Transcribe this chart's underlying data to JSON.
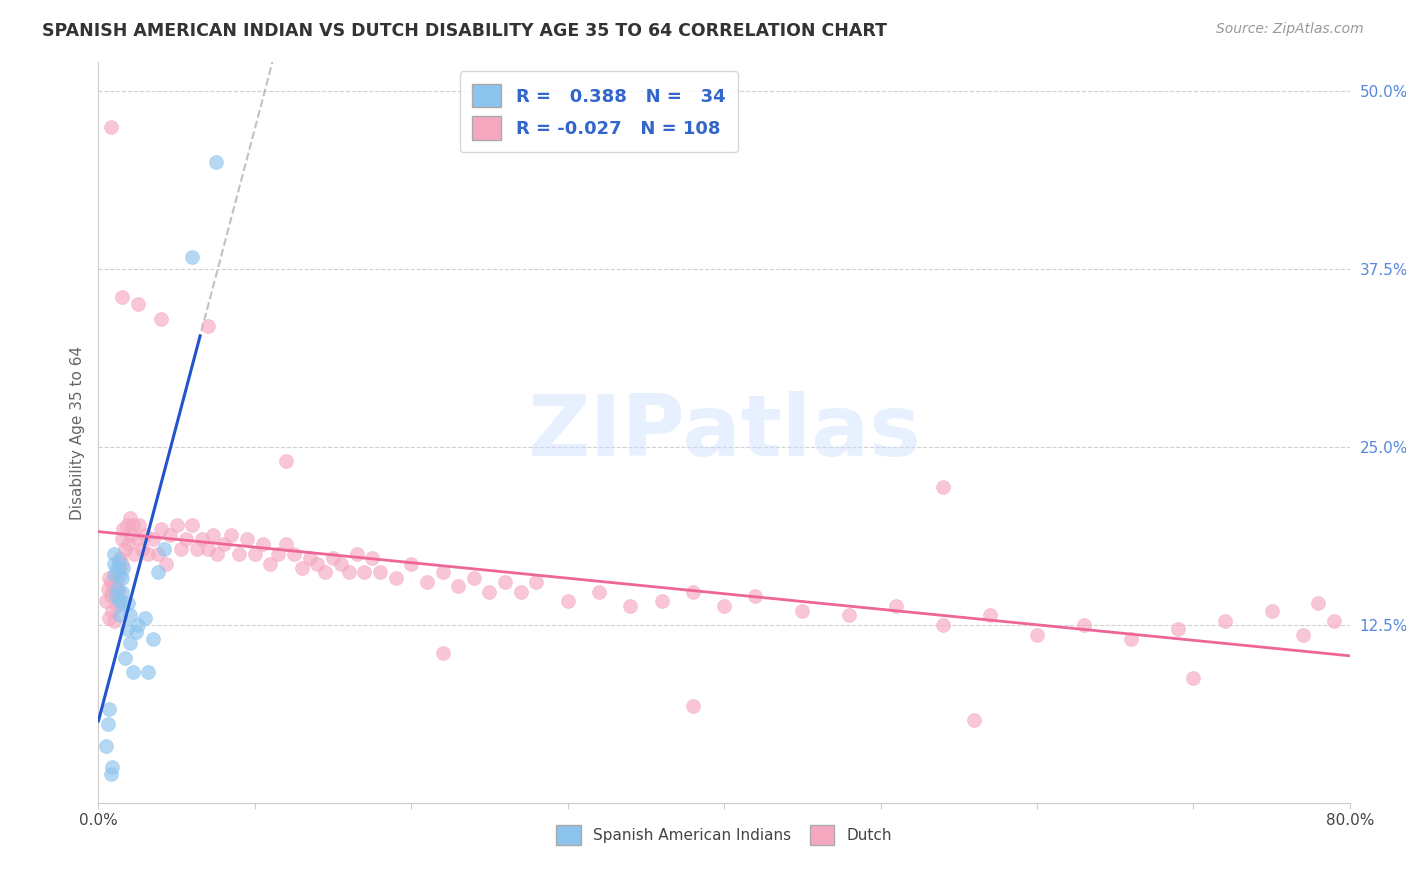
{
  "title": "SPANISH AMERICAN INDIAN VS DUTCH DISABILITY AGE 35 TO 64 CORRELATION CHART",
  "source": "Source: ZipAtlas.com",
  "ylabel": "Disability Age 35 to 64",
  "xlim": [
    0.0,
    0.8
  ],
  "ylim": [
    0.0,
    0.52
  ],
  "xtick_positions": [
    0.0,
    0.1,
    0.2,
    0.3,
    0.4,
    0.5,
    0.6,
    0.7,
    0.8
  ],
  "xtick_labels_visible": {
    "0.0": "0.0%",
    "0.80": "80.0%"
  },
  "ytick_positions": [
    0.125,
    0.25,
    0.375,
    0.5
  ],
  "ytick_labels": [
    "12.5%",
    "25.0%",
    "37.5%",
    "50.0%"
  ],
  "r_blue": 0.388,
  "n_blue": 34,
  "r_pink": -0.027,
  "n_pink": 108,
  "blue_color": "#8CC4EE",
  "pink_color": "#F5A8C0",
  "blue_line_color": "#2255CC",
  "pink_line_color": "#EE6699",
  "gray_dash_color": "#BBBBBB",
  "watermark_text": "ZIPatlas",
  "blue_x": [
    0.005,
    0.006,
    0.007,
    0.008,
    0.009,
    0.01,
    0.01,
    0.01,
    0.011,
    0.012,
    0.012,
    0.013,
    0.013,
    0.014,
    0.014,
    0.015,
    0.015,
    0.016,
    0.016,
    0.017,
    0.018,
    0.019,
    0.02,
    0.02,
    0.022,
    0.024,
    0.025,
    0.03,
    0.032,
    0.035,
    0.038,
    0.042,
    0.06,
    0.075
  ],
  "blue_y": [
    0.04,
    0.055,
    0.066,
    0.02,
    0.025,
    0.16,
    0.168,
    0.175,
    0.145,
    0.15,
    0.165,
    0.142,
    0.17,
    0.16,
    0.132,
    0.148,
    0.158,
    0.14,
    0.165,
    0.102,
    0.122,
    0.14,
    0.132,
    0.112,
    0.092,
    0.12,
    0.125,
    0.13,
    0.092,
    0.115,
    0.162,
    0.178,
    0.383,
    0.45
  ],
  "pink_x": [
    0.005,
    0.006,
    0.007,
    0.007,
    0.008,
    0.008,
    0.009,
    0.009,
    0.01,
    0.01,
    0.011,
    0.012,
    0.012,
    0.013,
    0.013,
    0.014,
    0.015,
    0.015,
    0.016,
    0.017,
    0.018,
    0.019,
    0.02,
    0.021,
    0.022,
    0.023,
    0.025,
    0.026,
    0.028,
    0.03,
    0.032,
    0.035,
    0.038,
    0.04,
    0.043,
    0.046,
    0.05,
    0.053,
    0.056,
    0.06,
    0.063,
    0.066,
    0.07,
    0.073,
    0.076,
    0.08,
    0.085,
    0.09,
    0.095,
    0.1,
    0.105,
    0.11,
    0.115,
    0.12,
    0.125,
    0.13,
    0.135,
    0.14,
    0.145,
    0.15,
    0.155,
    0.16,
    0.165,
    0.17,
    0.175,
    0.18,
    0.19,
    0.2,
    0.21,
    0.22,
    0.23,
    0.24,
    0.25,
    0.26,
    0.27,
    0.28,
    0.3,
    0.32,
    0.34,
    0.36,
    0.38,
    0.4,
    0.42,
    0.45,
    0.48,
    0.51,
    0.54,
    0.57,
    0.6,
    0.63,
    0.66,
    0.69,
    0.72,
    0.75,
    0.77,
    0.79,
    0.008,
    0.015,
    0.025,
    0.04,
    0.07,
    0.12,
    0.22,
    0.38,
    0.56,
    0.7,
    0.78,
    0.54
  ],
  "pink_y": [
    0.142,
    0.15,
    0.158,
    0.13,
    0.145,
    0.155,
    0.148,
    0.135,
    0.152,
    0.128,
    0.16,
    0.155,
    0.138,
    0.165,
    0.148,
    0.172,
    0.185,
    0.168,
    0.192,
    0.178,
    0.195,
    0.182,
    0.2,
    0.188,
    0.195,
    0.175,
    0.185,
    0.195,
    0.178,
    0.188,
    0.175,
    0.185,
    0.175,
    0.192,
    0.168,
    0.188,
    0.195,
    0.178,
    0.185,
    0.195,
    0.178,
    0.185,
    0.178,
    0.188,
    0.175,
    0.182,
    0.188,
    0.175,
    0.185,
    0.175,
    0.182,
    0.168,
    0.175,
    0.182,
    0.175,
    0.165,
    0.172,
    0.168,
    0.162,
    0.172,
    0.168,
    0.162,
    0.175,
    0.162,
    0.172,
    0.162,
    0.158,
    0.168,
    0.155,
    0.162,
    0.152,
    0.158,
    0.148,
    0.155,
    0.148,
    0.155,
    0.142,
    0.148,
    0.138,
    0.142,
    0.148,
    0.138,
    0.145,
    0.135,
    0.132,
    0.138,
    0.125,
    0.132,
    0.118,
    0.125,
    0.115,
    0.122,
    0.128,
    0.135,
    0.118,
    0.128,
    0.475,
    0.355,
    0.35,
    0.34,
    0.335,
    0.24,
    0.105,
    0.068,
    0.058,
    0.088,
    0.14,
    0.222
  ]
}
